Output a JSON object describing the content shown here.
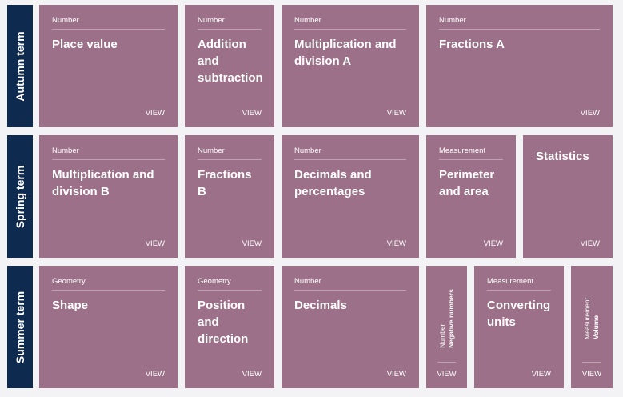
{
  "terms": [
    {
      "label": "Autumn term"
    },
    {
      "label": "Spring term"
    },
    {
      "label": "Summer term"
    }
  ],
  "view_label": "VIEW",
  "autumn": [
    {
      "category": "Number",
      "title": "Place value"
    },
    {
      "category": "Number",
      "title": "Addition and subtraction"
    },
    {
      "category": "Number",
      "title": "Multiplication and division A"
    },
    {
      "category": "Number",
      "title": "Fractions A"
    }
  ],
  "spring": [
    {
      "category": "Number",
      "title": "Multiplication and division B"
    },
    {
      "category": "Number",
      "title": "Fractions B"
    },
    {
      "category": "Number",
      "title": "Decimals and percentages"
    },
    {
      "category": "Measurement",
      "title": "Perimeter and area"
    },
    {
      "category": "",
      "title": "Statistics"
    }
  ],
  "summer": [
    {
      "category": "Geometry",
      "title": "Shape"
    },
    {
      "category": "Geometry",
      "title": "Position and direction"
    },
    {
      "category": "Number",
      "title": "Decimals"
    },
    {
      "category": "Number",
      "title": "Negative numbers"
    },
    {
      "category": "Measurement",
      "title": "Converting units"
    },
    {
      "category": "Measurement",
      "title": "Volume"
    }
  ]
}
